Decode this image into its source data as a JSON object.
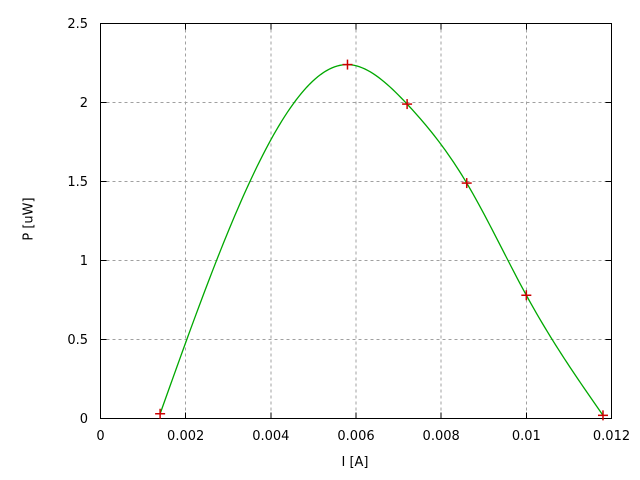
{
  "chart_data": {
    "type": "line",
    "title": "",
    "xlabel": "I [A]",
    "ylabel": "P [uW]",
    "xlim": [
      0,
      0.012
    ],
    "ylim": [
      0,
      2.5
    ],
    "xticks": [
      0,
      0.002,
      0.004,
      0.006,
      0.008,
      0.01,
      0.012
    ],
    "xtick_labels": [
      "0",
      "0.002",
      "0.004",
      "0.006",
      "0.008",
      "0.01",
      "0.012"
    ],
    "yticks": [
      0,
      0.5,
      1,
      1.5,
      2,
      2.5
    ],
    "ytick_labels": [
      "0",
      "0.5",
      "1",
      "1.5",
      "2",
      "2.5"
    ],
    "grid": true,
    "legend_position": "none",
    "series": [
      {
        "x": [
          0.0014,
          0.0058,
          0.0072,
          0.0086,
          0.01,
          0.0118
        ],
        "y": [
          0.03,
          2.24,
          1.99,
          1.49,
          0.78,
          0.02
        ],
        "smoothing": "cspline",
        "marker": "plus"
      }
    ],
    "colors": {
      "curve": "#00a800",
      "marker": "#cc0000",
      "grid": "#a0a0a0",
      "axis": "#000000",
      "background": "#ffffff"
    }
  }
}
